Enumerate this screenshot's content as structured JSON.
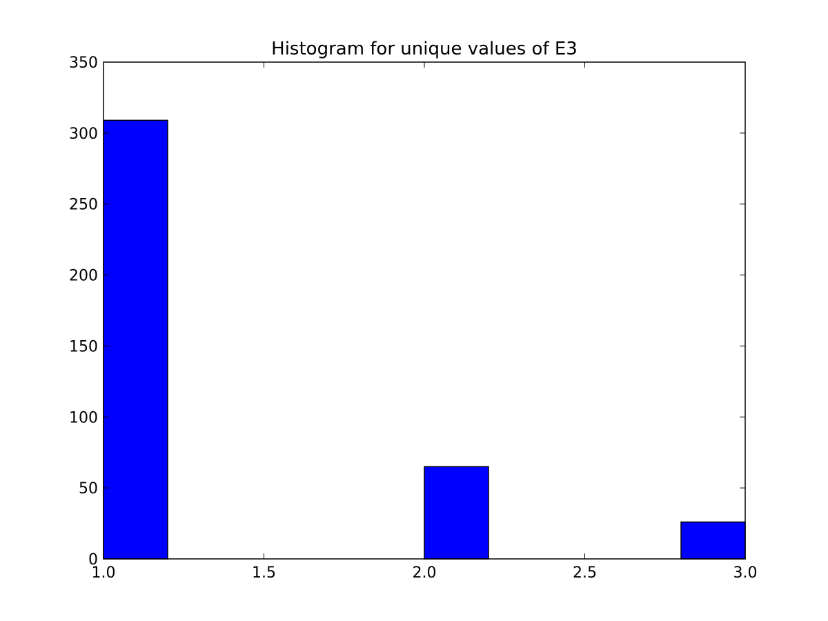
{
  "chart_data": {
    "type": "bar",
    "title": "Histogram for unique values of E3",
    "xlabel": "",
    "ylabel": "",
    "xlim": [
      1.0,
      3.0
    ],
    "ylim": [
      0,
      350
    ],
    "bins": [
      {
        "x0": 1.0,
        "x1": 1.2,
        "value": 309
      },
      {
        "x0": 1.2,
        "x1": 1.4,
        "value": 0
      },
      {
        "x0": 1.4,
        "x1": 1.6,
        "value": 0
      },
      {
        "x0": 1.6,
        "x1": 1.8,
        "value": 0
      },
      {
        "x0": 1.8,
        "x1": 2.0,
        "value": 0
      },
      {
        "x0": 2.0,
        "x1": 2.2,
        "value": 65
      },
      {
        "x0": 2.2,
        "x1": 2.4,
        "value": 0
      },
      {
        "x0": 2.4,
        "x1": 2.6,
        "value": 0
      },
      {
        "x0": 2.6,
        "x1": 2.8,
        "value": 0
      },
      {
        "x0": 2.8,
        "x1": 3.0,
        "value": 26
      }
    ],
    "x_ticks": [
      "1.0",
      "1.5",
      "2.0",
      "2.5",
      "3.0"
    ],
    "y_ticks": [
      "0",
      "50",
      "100",
      "150",
      "200",
      "250",
      "300",
      "350"
    ],
    "bar_color": "#0000ff",
    "edge_color": "#000000",
    "grid": false,
    "legend": false
  }
}
